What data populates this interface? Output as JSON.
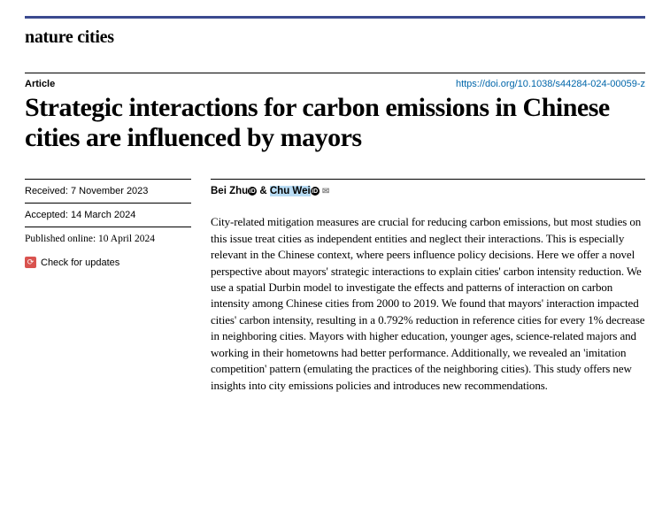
{
  "journal": "nature cities",
  "article_type": "Article",
  "doi": "https://doi.org/10.1038/s44284-024-00059-z",
  "title": "Strategic interactions for carbon emissions in Chinese cities are influenced by mayors",
  "meta": {
    "received_label": "Received: 7 November 2023",
    "accepted_label": "Accepted: 14 March 2024",
    "published_label": "Published online: 10 April 2024",
    "check_updates": "Check for updates"
  },
  "authors": {
    "a1": "Bei Zhu",
    "sep": " & ",
    "a2": "Chu Wei"
  },
  "abstract": "City-related mitigation measures are crucial for reducing carbon emissions, but most studies on this issue treat cities as independent entities and neglect their interactions. This is especially relevant in the Chinese context, where peers influence policy decisions. Here we offer a novel perspective about mayors' strategic interactions to explain cities' carbon intensity reduction. We use a spatial Durbin model to investigate the effects and patterns of interaction on carbon intensity among Chinese cities from 2000 to 2019. We found that mayors' interaction impacted cities' carbon intensity, resulting in a 0.792% reduction in reference cities for every 1% decrease in neighboring cities. Mayors with higher education, younger ages, science-related majors and working in their hometowns had better performance. Additionally, we revealed an 'imitation competition' pattern (emulating the practices of the neighboring cities). This study offers new insights into city emissions policies and introduces new recommendations.",
  "colors": {
    "top_rule": "#3b4a8f",
    "doi_link": "#0066aa",
    "highlight": "#b9dcf4",
    "check_icon": "#d9534f"
  }
}
